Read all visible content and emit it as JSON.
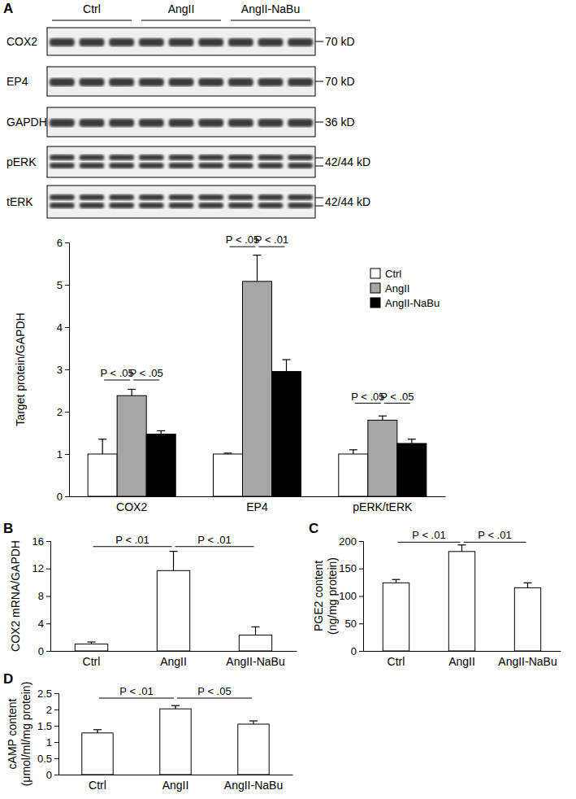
{
  "blot": {
    "title": "A",
    "lanes": [
      "Ctrl",
      "AngII",
      "AngII-NaBu"
    ],
    "rows": [
      {
        "name": "COX2",
        "size": "70 kD"
      },
      {
        "name": "EP4",
        "size": "70 kD"
      },
      {
        "name": "GAPDH",
        "size": "36 kD"
      },
      {
        "name": "pERK",
        "size": "42/44 kD"
      },
      {
        "name": "tERK",
        "size": "42/44 kD"
      }
    ]
  },
  "chart_data": [
    {
      "type": "bar",
      "ylabel": [
        "Target protein/GAPDH"
      ],
      "categories": [
        "COX2",
        "EP4",
        "pERK/tERK"
      ],
      "series": [
        {
          "name": "Ctrl",
          "color": "#ffffff",
          "values": [
            1.0,
            1.0,
            1.0
          ],
          "errors": [
            0.35,
            0.02,
            0.1
          ]
        },
        {
          "name": "AngII",
          "color": "#a6a6a6",
          "values": [
            2.38,
            5.08,
            1.8
          ],
          "errors": [
            0.15,
            0.62,
            0.1
          ]
        },
        {
          "name": "AngII-NaBu",
          "color": "#000000",
          "values": [
            1.47,
            2.95,
            1.25
          ],
          "errors": [
            0.08,
            0.28,
            0.1
          ]
        }
      ],
      "ylim": [
        0,
        6
      ],
      "yticks": [
        0,
        1,
        2,
        3,
        4,
        5,
        6
      ],
      "legend": "upper right",
      "annotations": [
        {
          "text": "P < .05",
          "category": 0,
          "from": 0,
          "to": 1,
          "y": 2.75
        },
        {
          "text": "P < .05",
          "category": 0,
          "from": 1,
          "to": 2,
          "y": 2.75
        },
        {
          "text": "P < .05",
          "category": 1,
          "from": 0,
          "to": 1,
          "y": 5.9
        },
        {
          "text": "P < .01",
          "category": 1,
          "from": 1,
          "to": 2,
          "y": 5.9
        },
        {
          "text": "P < .05",
          "category": 2,
          "from": 0,
          "to": 1,
          "y": 2.2
        },
        {
          "text": "P < .05",
          "category": 2,
          "from": 1,
          "to": 2,
          "y": 2.2
        }
      ]
    },
    {
      "type": "bar",
      "title": "B",
      "ylabel": [
        "COX2 mRNA/GAPDH"
      ],
      "categories": [
        "Ctrl",
        "AngII",
        "AngII-NaBu"
      ],
      "values": [
        1.0,
        11.7,
        2.3
      ],
      "errors": [
        0.3,
        2.8,
        1.2
      ],
      "color": "#ffffff",
      "ylim": [
        0,
        16
      ],
      "yticks": [
        0,
        4,
        8,
        12,
        16
      ],
      "annotations": [
        {
          "text": "P < .01",
          "from": 0,
          "to": 1,
          "y": 15.2
        },
        {
          "text": "P < .01",
          "from": 1,
          "to": 2,
          "y": 15.2
        }
      ]
    },
    {
      "type": "bar",
      "title": "C",
      "ylabel": [
        "PGE2 content",
        "(ng/mg protein)"
      ],
      "categories": [
        "Ctrl",
        "AngII",
        "AngII-NaBu"
      ],
      "values": [
        124,
        181,
        115
      ],
      "errors": [
        6,
        12,
        9
      ],
      "color": "#ffffff",
      "ylim": [
        0,
        200
      ],
      "yticks": [
        0,
        50,
        100,
        150,
        200
      ],
      "annotations": [
        {
          "text": "P < .01",
          "from": 0,
          "to": 1,
          "y": 198
        },
        {
          "text": "P < .01",
          "from": 1,
          "to": 2,
          "y": 198
        }
      ]
    },
    {
      "type": "bar",
      "title": "D",
      "ylabel": [
        "cAMP content",
        "(μmol/ml/mg protein)"
      ],
      "categories": [
        "Ctrl",
        "AngII",
        "AngII-NaBu"
      ],
      "values": [
        1.28,
        2.02,
        1.55
      ],
      "errors": [
        0.1,
        0.1,
        0.1
      ],
      "color": "#ffffff",
      "ylim": [
        0,
        2.5
      ],
      "yticks": [
        0,
        0.5,
        1,
        1.5,
        2,
        2.5
      ],
      "annotations": [
        {
          "text": "P < .01",
          "from": 0,
          "to": 1,
          "y": 2.35
        },
        {
          "text": "P < .05",
          "from": 1,
          "to": 2,
          "y": 2.35
        }
      ]
    }
  ]
}
